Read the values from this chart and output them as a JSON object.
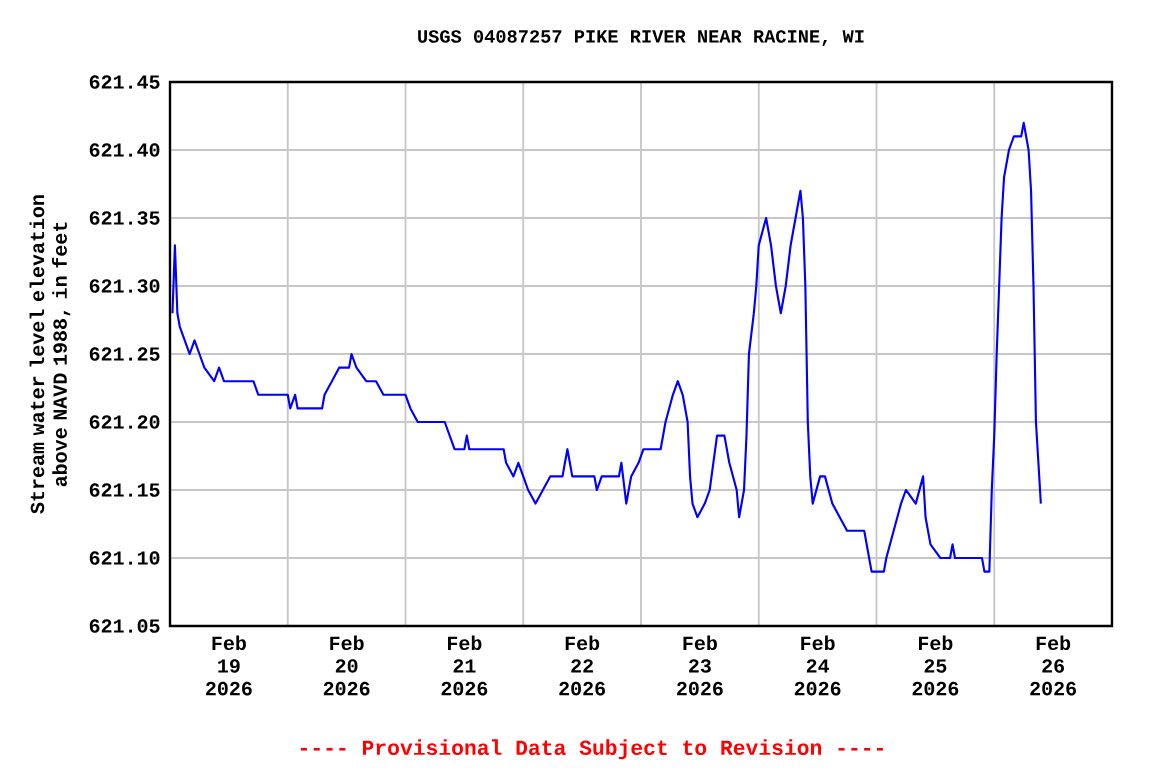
{
  "chart_data": {
    "type": "line",
    "title": "USGS 04087257 PIKE RIVER NEAR RACINE, WI",
    "ylabel": "Stream water level elevation above NAVD 1988, in feet",
    "annotations": [
      "---- Provisional Data Subject to Revision ----"
    ],
    "xlim": [
      "2026-02-19T00:00",
      "2026-02-27T00:00"
    ],
    "xticks": [
      {
        "value": "2026-02-19T12:00",
        "label": "Feb 19 2026"
      },
      {
        "value": "2026-02-20T12:00",
        "label": "Feb 20 2026"
      },
      {
        "value": "2026-02-21T12:00",
        "label": "Feb 21 2026"
      },
      {
        "value": "2026-02-22T12:00",
        "label": "Feb 22 2026"
      },
      {
        "value": "2026-02-23T12:00",
        "label": "Feb 23 2026"
      },
      {
        "value": "2026-02-24T12:00",
        "label": "Feb 24 2026"
      },
      {
        "value": "2026-02-25T12:00",
        "label": "Feb 25 2026"
      },
      {
        "value": "2026-02-26T12:00",
        "label": "Feb 26 2026"
      },
      {
        "value": "2026-02-20T00:00",
        "label": null
      },
      {
        "value": "2026-02-21T00:00",
        "label": null
      },
      {
        "value": "2026-02-22T00:00",
        "label": null
      },
      {
        "value": "2026-02-23T00:00",
        "label": null
      },
      {
        "value": "2026-02-24T00:00",
        "label": null
      },
      {
        "value": "2026-02-25T00:00",
        "label": null
      },
      {
        "value": "2026-02-26T00:00",
        "label": null
      }
    ],
    "ylim": [
      621.05,
      621.45
    ],
    "yticks": [
      621.05,
      {
        "value": 621.1,
        "label": "621.10"
      },
      621.15,
      {
        "value": 621.2,
        "label": "621.20"
      },
      621.25,
      {
        "value": 621.3,
        "label": "621.30"
      },
      621.35,
      {
        "value": 621.4,
        "label": "621.40"
      },
      621.45
    ],
    "grid": true,
    "series": [
      {
        "color": "#0000ff",
        "x": [
          "2026-02-19T00:30",
          "2026-02-19T01:00",
          "2026-02-19T01:30",
          "2026-02-19T02:00",
          "2026-02-19T03:00",
          "2026-02-19T04:00",
          "2026-02-19T05:00",
          "2026-02-19T06:00",
          "2026-02-19T07:00",
          "2026-02-19T09:00",
          "2026-02-19T10:00",
          "2026-02-19T11:00",
          "2026-02-19T17:00",
          "2026-02-19T18:00",
          "2026-02-20T00:00",
          "2026-02-20T00:30",
          "2026-02-20T01:30",
          "2026-02-20T02:00",
          "2026-02-20T07:00",
          "2026-02-20T07:30",
          "2026-02-20T09:00",
          "2026-02-20T10:30",
          "2026-02-20T12:30",
          "2026-02-20T13:00",
          "2026-02-20T14:00",
          "2026-02-20T16:00",
          "2026-02-20T18:00",
          "2026-02-20T19:30",
          "2026-02-21T00:00",
          "2026-02-21T01:00",
          "2026-02-21T02:30",
          "2026-02-21T08:00",
          "2026-02-21T09:00",
          "2026-02-21T10:00",
          "2026-02-21T12:00",
          "2026-02-21T12:30",
          "2026-02-21T13:00",
          "2026-02-21T20:00",
          "2026-02-21T20:30",
          "2026-02-21T22:00",
          "2026-02-21T23:00",
          "2026-02-22T00:00",
          "2026-02-22T01:00",
          "2026-02-22T02:30",
          "2026-02-22T04:00",
          "2026-02-22T05:30",
          "2026-02-22T08:00",
          "2026-02-22T08:30",
          "2026-02-22T09:00",
          "2026-02-22T10:00",
          "2026-02-22T14:30",
          "2026-02-22T15:00",
          "2026-02-22T16:00",
          "2026-02-22T19:30",
          "2026-02-22T20:00",
          "2026-02-22T21:00",
          "2026-02-22T22:00",
          "2026-02-22T23:30",
          "2026-02-23T00:30",
          "2026-02-23T04:00",
          "2026-02-23T05:00",
          "2026-02-23T06:30",
          "2026-02-23T07:30",
          "2026-02-23T08:30",
          "2026-02-23T09:30",
          "2026-02-23T10:00",
          "2026-02-23T10:30",
          "2026-02-23T11:30",
          "2026-02-23T13:00",
          "2026-02-23T14:00",
          "2026-02-23T15:30",
          "2026-02-23T17:00",
          "2026-02-23T18:00",
          "2026-02-23T19:30",
          "2026-02-23T20:00",
          "2026-02-23T21:00",
          "2026-02-23T21:30",
          "2026-02-23T22:00",
          "2026-02-23T23:00",
          "2026-02-23T23:30",
          "2026-02-24T00:00",
          "2026-02-24T01:30",
          "2026-02-24T02:30",
          "2026-02-24T03:30",
          "2026-02-24T04:30",
          "2026-02-24T05:30",
          "2026-02-24T06:30",
          "2026-02-24T07:30",
          "2026-02-24T08:30",
          "2026-02-24T09:00",
          "2026-02-24T09:30",
          "2026-02-24T10:00",
          "2026-02-24T10:30",
          "2026-02-24T11:00",
          "2026-02-24T12:30",
          "2026-02-24T13:30",
          "2026-02-24T15:00",
          "2026-02-24T16:30",
          "2026-02-24T18:00",
          "2026-02-24T21:30",
          "2026-02-24T22:30",
          "2026-02-24T23:00",
          "2026-02-25T01:30",
          "2026-02-25T02:00",
          "2026-02-25T03:30",
          "2026-02-25T05:00",
          "2026-02-25T06:00",
          "2026-02-25T08:00",
          "2026-02-25T09:30",
          "2026-02-25T10:00",
          "2026-02-25T11:00",
          "2026-02-25T13:00",
          "2026-02-25T15:00",
          "2026-02-25T15:30",
          "2026-02-25T16:00",
          "2026-02-25T21:30",
          "2026-02-25T22:00",
          "2026-02-25T23:00",
          "2026-02-25T23:30",
          "2026-02-26T00:00",
          "2026-02-26T00:30",
          "2026-02-26T01:00",
          "2026-02-26T01:30",
          "2026-02-26T02:00",
          "2026-02-26T03:00",
          "2026-02-26T04:00",
          "2026-02-26T05:30",
          "2026-02-26T06:00",
          "2026-02-26T07:00",
          "2026-02-26T07:30",
          "2026-02-26T08:00",
          "2026-02-26T08:30",
          "2026-02-26T09:00",
          "2026-02-26T09:30"
        ],
        "values": [
          621.28,
          621.33,
          621.28,
          621.27,
          621.26,
          621.25,
          621.26,
          621.25,
          621.24,
          621.23,
          621.24,
          621.23,
          621.23,
          621.22,
          621.22,
          621.21,
          621.22,
          621.21,
          621.21,
          621.22,
          621.23,
          621.24,
          621.24,
          621.25,
          621.24,
          621.23,
          621.23,
          621.22,
          621.22,
          621.21,
          621.2,
          621.2,
          621.19,
          621.18,
          621.18,
          621.19,
          621.18,
          621.18,
          621.17,
          621.16,
          621.17,
          621.16,
          621.15,
          621.14,
          621.15,
          621.16,
          621.16,
          621.17,
          621.18,
          621.16,
          621.16,
          621.15,
          621.16,
          621.16,
          621.17,
          621.14,
          621.16,
          621.17,
          621.18,
          621.18,
          621.2,
          621.22,
          621.23,
          621.22,
          621.2,
          621.16,
          621.14,
          621.13,
          621.14,
          621.15,
          621.19,
          621.19,
          621.17,
          621.15,
          621.13,
          621.15,
          621.19,
          621.25,
          621.28,
          621.3,
          621.33,
          621.35,
          621.33,
          621.3,
          621.28,
          621.3,
          621.33,
          621.35,
          621.37,
          621.35,
          621.3,
          621.2,
          621.16,
          621.14,
          621.16,
          621.16,
          621.14,
          621.13,
          621.12,
          621.12,
          621.1,
          621.09,
          621.09,
          621.1,
          621.12,
          621.14,
          621.15,
          621.14,
          621.16,
          621.13,
          621.11,
          621.1,
          621.1,
          621.11,
          621.1,
          621.1,
          621.09,
          621.09,
          621.15,
          621.19,
          621.25,
          621.3,
          621.35,
          621.38,
          621.4,
          621.41,
          621.41,
          621.42,
          621.4,
          621.37,
          621.3,
          621.2,
          621.17,
          621.14
        ]
      }
    ]
  }
}
